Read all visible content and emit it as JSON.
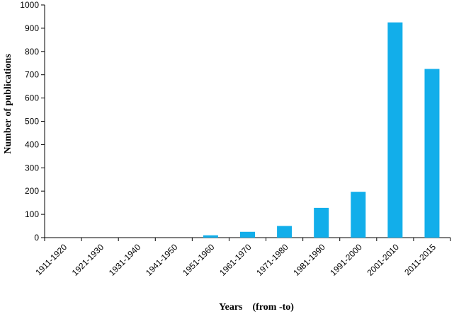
{
  "chart_data": {
    "type": "bar",
    "categories": [
      "1911-1920",
      "1921-1930",
      "1931-1940",
      "1941-1950",
      "1951-1960",
      "1961-1970",
      "1971-1980",
      "1981-1990",
      "1991-2000",
      "2001-2010",
      "2011-2015"
    ],
    "values": [
      0,
      0,
      0,
      0,
      10,
      25,
      50,
      128,
      197,
      925,
      725
    ],
    "xlabel": "Years    (from -to)",
    "ylabel": "Number of publications",
    "ylim": [
      0,
      1000
    ],
    "yticks": [
      0,
      100,
      200,
      300,
      400,
      500,
      600,
      700,
      800,
      900,
      1000
    ],
    "bar_color": "#12AEEA",
    "grid": false,
    "legend": "none"
  }
}
